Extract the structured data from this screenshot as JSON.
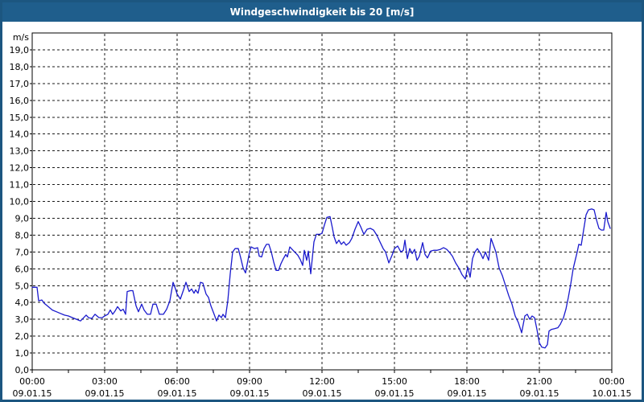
{
  "window": {
    "title": "Windgeschwindigkeit bis 20 [m/s]",
    "titlebar_bg": "#1f5e8c",
    "border_color": "#1c5680"
  },
  "chart_data": {
    "type": "line",
    "title": "Windgeschwindigkeit bis 20 [m/s]",
    "y_unit_label": "m/s",
    "ylim": [
      0,
      20
    ],
    "y_tick_step": 1,
    "y_tick_labels": [
      "0,0",
      "1,0",
      "2,0",
      "3,0",
      "4,0",
      "5,0",
      "6,0",
      "7,0",
      "8,0",
      "9,0",
      "10,0",
      "11,0",
      "12,0",
      "13,0",
      "14,0",
      "15,0",
      "16,0",
      "17,0",
      "18,0",
      "19,0"
    ],
    "x_range_minutes": [
      0,
      1440
    ],
    "x_major_tick_minutes": 180,
    "x_minor_tick_minutes": 90,
    "x_ticks": [
      {
        "minutes": 0,
        "time": "00:00",
        "date": "09.01.15"
      },
      {
        "minutes": 180,
        "time": "03:00",
        "date": "09.01.15"
      },
      {
        "minutes": 360,
        "time": "06:00",
        "date": "09.01.15"
      },
      {
        "minutes": 540,
        "time": "09:00",
        "date": "09.01.15"
      },
      {
        "minutes": 720,
        "time": "12:00",
        "date": "09.01.15"
      },
      {
        "minutes": 900,
        "time": "15:00",
        "date": "09.01.15"
      },
      {
        "minutes": 1080,
        "time": "18:00",
        "date": "09.01.15"
      },
      {
        "minutes": 1260,
        "time": "21:00",
        "date": "09.01.15"
      },
      {
        "minutes": 1440,
        "time": "00:00",
        "date": "10.01.15"
      }
    ],
    "grid": "dashed",
    "grid_color": "#1a1a1a",
    "axis_color": "#000000",
    "line_color": "#1a1acd",
    "legend": "none",
    "series": [
      {
        "name": "Windgeschwindigkeit",
        "points_min_mps": [
          [
            0,
            4.9
          ],
          [
            12,
            4.9
          ],
          [
            16,
            4.1
          ],
          [
            24,
            4.15
          ],
          [
            30,
            3.95
          ],
          [
            40,
            3.75
          ],
          [
            50,
            3.55
          ],
          [
            60,
            3.45
          ],
          [
            70,
            3.35
          ],
          [
            80,
            3.25
          ],
          [
            90,
            3.2
          ],
          [
            100,
            3.1
          ],
          [
            110,
            3.0
          ],
          [
            120,
            2.9
          ],
          [
            128,
            3.1
          ],
          [
            134,
            3.25
          ],
          [
            140,
            3.1
          ],
          [
            148,
            3.05
          ],
          [
            156,
            3.3
          ],
          [
            166,
            3.1
          ],
          [
            174,
            3.1
          ],
          [
            180,
            3.2
          ],
          [
            188,
            3.3
          ],
          [
            194,
            3.55
          ],
          [
            200,
            3.3
          ],
          [
            206,
            3.5
          ],
          [
            212,
            3.75
          ],
          [
            220,
            3.5
          ],
          [
            226,
            3.6
          ],
          [
            232,
            3.3
          ],
          [
            236,
            4.65
          ],
          [
            244,
            4.7
          ],
          [
            250,
            4.7
          ],
          [
            258,
            3.8
          ],
          [
            264,
            3.45
          ],
          [
            272,
            3.9
          ],
          [
            278,
            3.55
          ],
          [
            286,
            3.3
          ],
          [
            294,
            3.3
          ],
          [
            300,
            3.9
          ],
          [
            308,
            3.9
          ],
          [
            316,
            3.3
          ],
          [
            326,
            3.3
          ],
          [
            334,
            3.6
          ],
          [
            342,
            4.1
          ],
          [
            350,
            5.2
          ],
          [
            356,
            4.8
          ],
          [
            360,
            4.5
          ],
          [
            368,
            4.2
          ],
          [
            376,
            4.75
          ],
          [
            382,
            5.2
          ],
          [
            390,
            4.65
          ],
          [
            396,
            4.8
          ],
          [
            402,
            4.55
          ],
          [
            406,
            4.75
          ],
          [
            412,
            4.55
          ],
          [
            418,
            5.2
          ],
          [
            424,
            5.15
          ],
          [
            432,
            4.5
          ],
          [
            438,
            4.3
          ],
          [
            444,
            3.8
          ],
          [
            452,
            3.3
          ],
          [
            458,
            2.9
          ],
          [
            464,
            3.25
          ],
          [
            470,
            3.1
          ],
          [
            474,
            3.3
          ],
          [
            480,
            3.1
          ],
          [
            486,
            4.1
          ],
          [
            492,
            5.7
          ],
          [
            498,
            7.0
          ],
          [
            504,
            7.2
          ],
          [
            512,
            7.2
          ],
          [
            518,
            6.65
          ],
          [
            524,
            6.05
          ],
          [
            530,
            5.75
          ],
          [
            536,
            6.5
          ],
          [
            540,
            7.0
          ],
          [
            544,
            7.3
          ],
          [
            552,
            7.2
          ],
          [
            560,
            7.25
          ],
          [
            564,
            6.75
          ],
          [
            570,
            6.7
          ],
          [
            576,
            7.2
          ],
          [
            582,
            7.45
          ],
          [
            588,
            7.45
          ],
          [
            594,
            7.0
          ],
          [
            600,
            6.4
          ],
          [
            606,
            5.9
          ],
          [
            612,
            5.9
          ],
          [
            618,
            6.3
          ],
          [
            624,
            6.6
          ],
          [
            630,
            6.85
          ],
          [
            634,
            6.7
          ],
          [
            640,
            7.3
          ],
          [
            648,
            7.1
          ],
          [
            656,
            6.9
          ],
          [
            660,
            6.8
          ],
          [
            666,
            6.55
          ],
          [
            672,
            6.2
          ],
          [
            676,
            7.1
          ],
          [
            682,
            6.5
          ],
          [
            686,
            7.05
          ],
          [
            692,
            5.7
          ],
          [
            700,
            7.6
          ],
          [
            706,
            8.05
          ],
          [
            714,
            8.05
          ],
          [
            720,
            8.1
          ],
          [
            726,
            8.6
          ],
          [
            732,
            9.05
          ],
          [
            740,
            9.1
          ],
          [
            746,
            8.4
          ],
          [
            750,
            7.9
          ],
          [
            756,
            7.5
          ],
          [
            762,
            7.7
          ],
          [
            768,
            7.45
          ],
          [
            774,
            7.6
          ],
          [
            780,
            7.4
          ],
          [
            788,
            7.55
          ],
          [
            794,
            7.8
          ],
          [
            802,
            8.35
          ],
          [
            810,
            8.8
          ],
          [
            816,
            8.5
          ],
          [
            824,
            8.05
          ],
          [
            832,
            8.35
          ],
          [
            840,
            8.4
          ],
          [
            848,
            8.3
          ],
          [
            856,
            8.0
          ],
          [
            864,
            7.6
          ],
          [
            872,
            7.2
          ],
          [
            878,
            7.0
          ],
          [
            886,
            6.35
          ],
          [
            894,
            6.8
          ],
          [
            900,
            7.2
          ],
          [
            908,
            7.35
          ],
          [
            916,
            7.0
          ],
          [
            922,
            7.1
          ],
          [
            926,
            7.7
          ],
          [
            932,
            6.6
          ],
          [
            938,
            7.2
          ],
          [
            944,
            6.9
          ],
          [
            950,
            7.15
          ],
          [
            956,
            6.5
          ],
          [
            962,
            6.75
          ],
          [
            970,
            7.55
          ],
          [
            976,
            6.85
          ],
          [
            982,
            6.65
          ],
          [
            990,
            7.05
          ],
          [
            998,
            7.1
          ],
          [
            1006,
            7.1
          ],
          [
            1014,
            7.15
          ],
          [
            1022,
            7.25
          ],
          [
            1030,
            7.15
          ],
          [
            1036,
            7.0
          ],
          [
            1044,
            6.75
          ],
          [
            1052,
            6.35
          ],
          [
            1060,
            6.05
          ],
          [
            1068,
            5.65
          ],
          [
            1076,
            5.4
          ],
          [
            1082,
            6.1
          ],
          [
            1088,
            5.5
          ],
          [
            1094,
            6.6
          ],
          [
            1100,
            7.0
          ],
          [
            1106,
            7.2
          ],
          [
            1114,
            6.9
          ],
          [
            1120,
            6.6
          ],
          [
            1126,
            7.0
          ],
          [
            1134,
            6.5
          ],
          [
            1140,
            7.8
          ],
          [
            1146,
            7.4
          ],
          [
            1152,
            7.0
          ],
          [
            1160,
            6.05
          ],
          [
            1168,
            5.6
          ],
          [
            1176,
            5.0
          ],
          [
            1184,
            4.4
          ],
          [
            1192,
            3.9
          ],
          [
            1200,
            3.2
          ],
          [
            1208,
            2.8
          ],
          [
            1216,
            2.2
          ],
          [
            1224,
            3.2
          ],
          [
            1230,
            3.3
          ],
          [
            1236,
            3.0
          ],
          [
            1242,
            3.2
          ],
          [
            1248,
            3.1
          ],
          [
            1254,
            2.4
          ],
          [
            1260,
            1.6
          ],
          [
            1266,
            1.35
          ],
          [
            1274,
            1.3
          ],
          [
            1280,
            1.5
          ],
          [
            1284,
            2.3
          ],
          [
            1290,
            2.4
          ],
          [
            1298,
            2.45
          ],
          [
            1306,
            2.5
          ],
          [
            1312,
            2.7
          ],
          [
            1320,
            3.1
          ],
          [
            1326,
            3.6
          ],
          [
            1332,
            4.3
          ],
          [
            1338,
            5.1
          ],
          [
            1344,
            6.0
          ],
          [
            1350,
            6.6
          ],
          [
            1354,
            7.0
          ],
          [
            1358,
            7.45
          ],
          [
            1364,
            7.4
          ],
          [
            1370,
            8.3
          ],
          [
            1376,
            9.2
          ],
          [
            1382,
            9.5
          ],
          [
            1390,
            9.55
          ],
          [
            1396,
            9.5
          ],
          [
            1402,
            8.9
          ],
          [
            1408,
            8.4
          ],
          [
            1414,
            8.3
          ],
          [
            1420,
            8.3
          ],
          [
            1426,
            9.35
          ],
          [
            1430,
            8.8
          ],
          [
            1436,
            8.4
          ]
        ]
      }
    ]
  }
}
